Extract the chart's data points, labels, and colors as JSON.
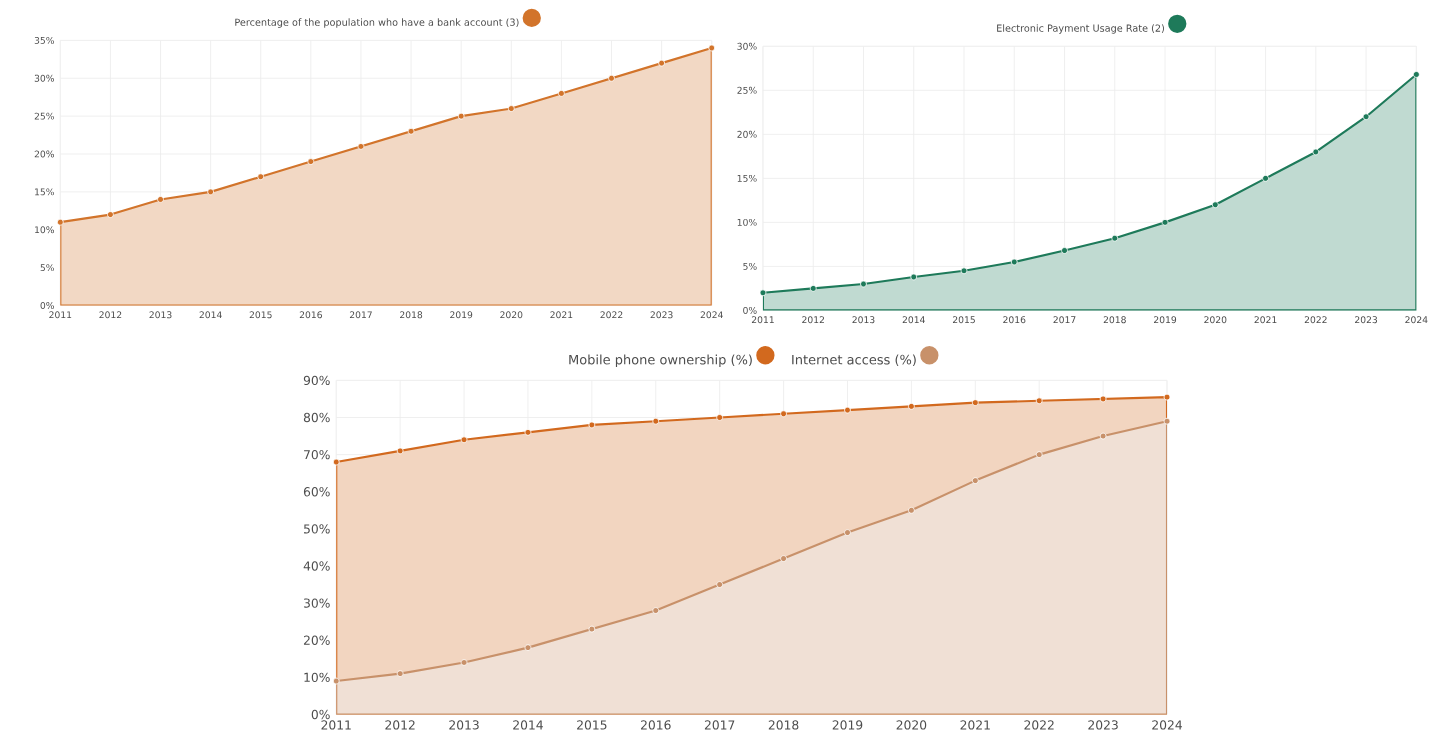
{
  "chart_data": [
    {
      "type": "area",
      "categories": [
        "2011",
        "2012",
        "2013",
        "2014",
        "2015",
        "2016",
        "2017",
        "2018",
        "2019",
        "2020",
        "2021",
        "2022",
        "2023",
        "2024"
      ],
      "series": [
        {
          "name": "Percentage of the population who have a bank account (3)",
          "color": "#d2742b",
          "values": [
            11,
            12,
            14,
            15,
            17,
            19,
            21,
            23,
            25,
            26,
            28,
            30,
            32,
            34
          ]
        }
      ],
      "ylim": [
        0,
        35
      ],
      "yticks": [
        {
          "value": 0,
          "label": "0%"
        },
        {
          "value": 5,
          "label": "5%"
        },
        {
          "value": 10,
          "label": "10%"
        },
        {
          "value": 15,
          "label": "15%"
        },
        {
          "value": 20,
          "label": "20%"
        },
        {
          "value": 25,
          "label": "25%"
        },
        {
          "value": 30,
          "label": "30%"
        },
        {
          "value": 35,
          "label": "35%"
        }
      ],
      "grid": true,
      "legend": "top",
      "marker": "circle"
    },
    {
      "type": "area",
      "categories": [
        "2011",
        "2012",
        "2013",
        "2014",
        "2015",
        "2016",
        "2017",
        "2018",
        "2019",
        "2020",
        "2021",
        "2022",
        "2023",
        "2024"
      ],
      "series": [
        {
          "name": "Electronic Payment Usage Rate (2)",
          "color": "#1e7a5a",
          "values": [
            2,
            2.5,
            3,
            3.8,
            4.5,
            5.5,
            6.8,
            8.2,
            10,
            12,
            15,
            18,
            22,
            26.8
          ]
        }
      ],
      "ylim": [
        0,
        30
      ],
      "yticks": [
        {
          "value": 0,
          "label": "0%"
        },
        {
          "value": 5,
          "label": "5%"
        },
        {
          "value": 10,
          "label": "10%"
        },
        {
          "value": 15,
          "label": "15%"
        },
        {
          "value": 20,
          "label": "20%"
        },
        {
          "value": 25,
          "label": "25%"
        },
        {
          "value": 30,
          "label": "30%"
        }
      ],
      "grid": true,
      "legend": "top",
      "marker": "circle"
    },
    {
      "type": "area",
      "categories": [
        "2011",
        "2012",
        "2013",
        "2014",
        "2015",
        "2016",
        "2017",
        "2018",
        "2019",
        "2020",
        "2021",
        "2022",
        "2023",
        "2024"
      ],
      "series": [
        {
          "name": "Internet access (%)",
          "color": "#c8916a",
          "values": [
            9,
            11,
            14,
            18,
            23,
            28,
            35,
            42,
            49,
            55,
            63,
            70,
            75,
            79
          ]
        },
        {
          "name": "Mobile phone ownership (%)",
          "color": "#d2691e",
          "values": [
            68,
            71,
            74,
            76,
            78,
            79,
            80,
            81,
            82,
            83,
            84,
            84.5,
            85,
            85.5
          ]
        }
      ],
      "ylim": [
        0,
        90
      ],
      "yticks": [
        {
          "value": 0,
          "label": "0%"
        },
        {
          "value": 10,
          "label": "10%"
        },
        {
          "value": 20,
          "label": "20%"
        },
        {
          "value": 30,
          "label": "30%"
        },
        {
          "value": 40,
          "label": "40%"
        },
        {
          "value": 50,
          "label": "50%"
        },
        {
          "value": 60,
          "label": "60%"
        },
        {
          "value": 70,
          "label": "70%"
        },
        {
          "value": 80,
          "label": "80%"
        },
        {
          "value": 90,
          "label": "90%"
        }
      ],
      "grid": true,
      "legend": "top",
      "marker": "circle"
    }
  ]
}
